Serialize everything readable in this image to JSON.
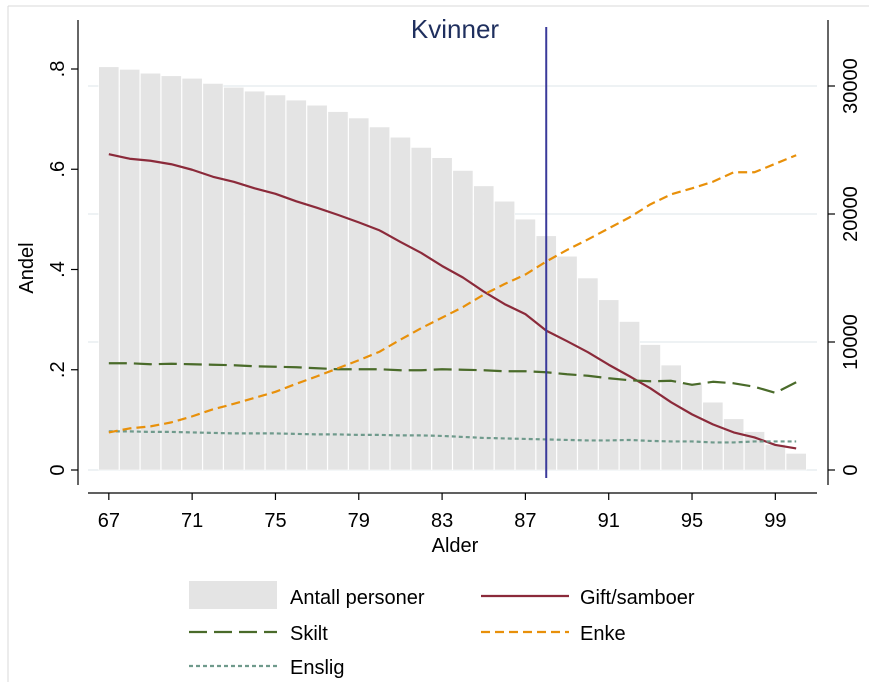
{
  "chart_data": {
    "type": "bar+line",
    "title": "Kvinner",
    "xlabel": "Alder",
    "ylabel": "Andel",
    "xlim": [
      66,
      101
    ],
    "ylim": [
      0,
      0.8
    ],
    "y2lim": [
      0,
      30000
    ],
    "x_ticks": [
      67,
      71,
      75,
      79,
      83,
      87,
      91,
      95,
      99
    ],
    "y_ticks": [
      {
        "value": 0,
        "label": "0"
      },
      {
        "value": 0.2,
        "label": ".2"
      },
      {
        "value": 0.4,
        "label": ".4"
      },
      {
        "value": 0.6,
        "label": ".6"
      },
      {
        "value": 0.8,
        "label": ".8"
      }
    ],
    "y2_ticks": [
      {
        "value": 0,
        "label": "0"
      },
      {
        "value": 10000,
        "label": "10000"
      },
      {
        "value": 20000,
        "label": "20000"
      },
      {
        "value": 30000,
        "label": "30000"
      }
    ],
    "vline_x": 88,
    "ages": [
      67,
      68,
      69,
      70,
      71,
      72,
      73,
      74,
      75,
      76,
      77,
      78,
      79,
      80,
      81,
      82,
      83,
      84,
      85,
      86,
      87,
      88,
      89,
      90,
      91,
      92,
      93,
      94,
      95,
      96,
      97,
      98,
      99,
      100
    ],
    "bars": {
      "name": "Antall personer",
      "axis": "right",
      "values": [
        31500,
        31300,
        31000,
        30800,
        30600,
        30200,
        29900,
        29600,
        29300,
        28900,
        28500,
        28000,
        27500,
        26800,
        26000,
        25200,
        24400,
        23400,
        22200,
        21000,
        19600,
        18300,
        16700,
        15000,
        13300,
        11600,
        9800,
        8200,
        6800,
        5300,
        4000,
        3000,
        2000,
        1300
      ]
    },
    "series": [
      {
        "name": "Gift/samboer",
        "color": "#8b2a3a",
        "dash": "",
        "values": [
          0.63,
          0.621,
          0.617,
          0.61,
          0.599,
          0.585,
          0.575,
          0.562,
          0.551,
          0.536,
          0.523,
          0.509,
          0.494,
          0.478,
          0.455,
          0.433,
          0.407,
          0.384,
          0.356,
          0.331,
          0.311,
          0.278,
          0.257,
          0.235,
          0.21,
          0.187,
          0.163,
          0.135,
          0.111,
          0.091,
          0.075,
          0.065,
          0.05,
          0.043
        ]
      },
      {
        "name": "Skilt",
        "color": "#4a6b2a",
        "dash": "18,7",
        "values": [
          0.213,
          0.213,
          0.211,
          0.212,
          0.211,
          0.21,
          0.209,
          0.207,
          0.206,
          0.205,
          0.203,
          0.201,
          0.201,
          0.201,
          0.199,
          0.199,
          0.201,
          0.2,
          0.199,
          0.197,
          0.197,
          0.195,
          0.191,
          0.188,
          0.183,
          0.179,
          0.177,
          0.178,
          0.17,
          0.176,
          0.173,
          0.166,
          0.154,
          0.175
        ]
      },
      {
        "name": "Enke",
        "color": "#e8900a",
        "dash": "9,5",
        "values": [
          0.075,
          0.083,
          0.087,
          0.095,
          0.107,
          0.121,
          0.132,
          0.144,
          0.156,
          0.172,
          0.187,
          0.203,
          0.219,
          0.236,
          0.26,
          0.283,
          0.304,
          0.325,
          0.35,
          0.371,
          0.39,
          0.416,
          0.439,
          0.46,
          0.482,
          0.504,
          0.53,
          0.55,
          0.562,
          0.575,
          0.594,
          0.594,
          0.611,
          0.628
        ]
      },
      {
        "name": "Enslig",
        "color": "#6f9a8c",
        "dash": "4,3",
        "values": [
          0.077,
          0.077,
          0.076,
          0.076,
          0.075,
          0.074,
          0.073,
          0.073,
          0.073,
          0.072,
          0.071,
          0.071,
          0.07,
          0.07,
          0.069,
          0.069,
          0.068,
          0.066,
          0.064,
          0.063,
          0.062,
          0.061,
          0.06,
          0.059,
          0.059,
          0.06,
          0.058,
          0.057,
          0.057,
          0.055,
          0.055,
          0.057,
          0.057,
          0.057
        ]
      }
    ],
    "legend": {
      "position": "bottom",
      "entries": [
        {
          "label": "Antall personer",
          "kind": "bar"
        },
        {
          "label": "Gift/samboer",
          "kind": "line",
          "series": 0
        },
        {
          "label": "Skilt",
          "kind": "line",
          "series": 1
        },
        {
          "label": "Enke",
          "kind": "line",
          "series": 2
        },
        {
          "label": "Enslig",
          "kind": "line",
          "series": 3
        }
      ]
    },
    "colors": {
      "bars": "#e4e4e4",
      "vline": "#3a3a9a",
      "title": "#1f2f5e",
      "grid": "#e8eef0"
    },
    "grid": true
  }
}
